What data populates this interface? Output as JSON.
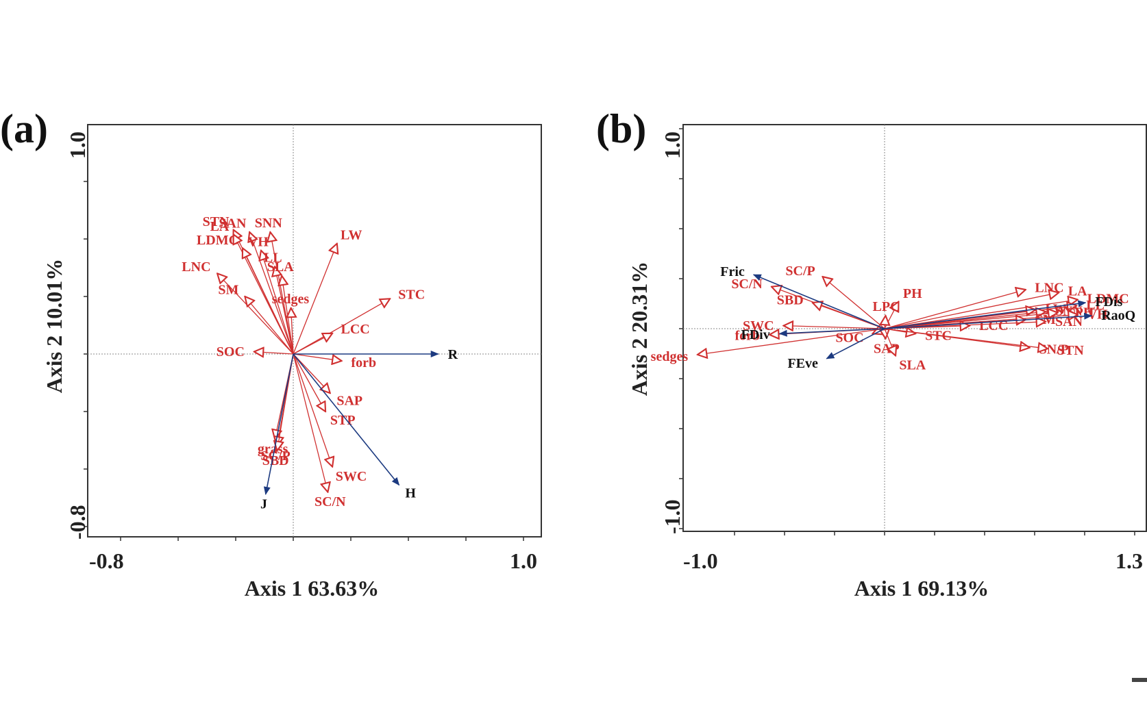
{
  "chart_data": [
    {
      "type": "scatter",
      "panel_label": "(a)",
      "xlabel": "Axis 1 63.63%",
      "ylabel": "Axis 2 10.01%",
      "xlim": [
        -0.8,
        1.0
      ],
      "ylim": [
        -0.8,
        1.0
      ],
      "x_tick_labels": [
        "-0.8",
        "1.0"
      ],
      "y_tick_labels": [
        "1.0",
        "-0.8"
      ],
      "series": [
        {
          "color": "#d03030",
          "head": "open",
          "vectors": [
            {
              "label": "STN",
              "x": -0.26,
              "y": 0.54
            },
            {
              "label": "LA",
              "x": -0.26,
              "y": 0.52
            },
            {
              "label": "SAN",
              "x": -0.19,
              "y": 0.53
            },
            {
              "label": "SNN",
              "x": -0.1,
              "y": 0.53
            },
            {
              "label": "LDMC",
              "x": -0.22,
              "y": 0.46
            },
            {
              "label": "VH",
              "x": -0.14,
              "y": 0.45
            },
            {
              "label": "LL",
              "x": -0.08,
              "y": 0.38
            },
            {
              "label": "SLA",
              "x": -0.05,
              "y": 0.34
            },
            {
              "label": "LNC",
              "x": -0.33,
              "y": 0.35
            },
            {
              "label": "SM",
              "x": -0.21,
              "y": 0.25
            },
            {
              "label": "sedges",
              "x": -0.01,
              "y": 0.2
            },
            {
              "label": "LW",
              "x": 0.19,
              "y": 0.48
            },
            {
              "label": "STC",
              "x": 0.42,
              "y": 0.24
            },
            {
              "label": "LCC",
              "x": 0.17,
              "y": 0.09
            },
            {
              "label": "SOC",
              "x": -0.17,
              "y": 0.01
            },
            {
              "label": "forb",
              "x": 0.21,
              "y": -0.03
            },
            {
              "label": "SAP",
              "x": 0.16,
              "y": -0.17
            },
            {
              "label": "STP",
              "x": 0.14,
              "y": -0.25
            },
            {
              "label": "grass",
              "x": -0.08,
              "y": -0.37
            },
            {
              "label": "SC/P",
              "x": -0.07,
              "y": -0.4
            },
            {
              "label": "SBD",
              "x": -0.07,
              "y": -0.42
            },
            {
              "label": "SWC",
              "x": 0.17,
              "y": -0.49
            },
            {
              "label": "SC/N",
              "x": 0.15,
              "y": -0.6
            }
          ]
        },
        {
          "color": "#1c3a80",
          "head": "filled",
          "vectors": [
            {
              "label": "R",
              "x": 0.63,
              "y": 0.0
            },
            {
              "label": "H",
              "x": 0.46,
              "y": -0.57
            },
            {
              "label": "J",
              "x": -0.12,
              "y": -0.61
            }
          ]
        }
      ]
    },
    {
      "type": "scatter",
      "panel_label": "(b)",
      "xlabel": "Axis 1 69.13%",
      "ylabel": "Axis 2 20.31%",
      "xlim": [
        -1.0,
        1.3
      ],
      "ylim": [
        -1.0,
        1.0
      ],
      "x_tick_labels": [
        "-1.0",
        "1.3"
      ],
      "y_tick_labels": [
        "1.0",
        "-1.0"
      ],
      "series": [
        {
          "color": "#d03030",
          "head": "open",
          "vectors": [
            {
              "label": "SC/P",
              "x": -0.62,
              "y": 0.52
            },
            {
              "label": "SC/N",
              "x": -1.13,
              "y": 0.42
            },
            {
              "label": "SBD",
              "x": -0.72,
              "y": 0.26
            },
            {
              "label": "PH",
              "x": 0.14,
              "y": 0.27
            },
            {
              "label": "LPC",
              "x": 0.01,
              "y": 0.13
            },
            {
              "label": "LNC",
              "x": 1.41,
              "y": 0.39
            },
            {
              "label": "LA",
              "x": 1.74,
              "y": 0.36
            },
            {
              "label": "LDMC",
              "x": 1.93,
              "y": 0.29
            },
            {
              "label": "LL",
              "x": 1.92,
              "y": 0.23
            },
            {
              "label": "LW",
              "x": 1.51,
              "y": 0.19
            },
            {
              "label": "SNN",
              "x": 1.61,
              "y": 0.17
            },
            {
              "label": "SPH",
              "x": 1.73,
              "y": 0.16
            },
            {
              "label": "VH",
              "x": 1.93,
              "y": 0.14
            },
            {
              "label": "SM",
              "x": 1.41,
              "y": 0.09
            },
            {
              "label": "SAN",
              "x": 1.61,
              "y": 0.07
            },
            {
              "label": "LCC",
              "x": 0.85,
              "y": 0.03
            },
            {
              "label": "SWC",
              "x": -1.01,
              "y": 0.03
            },
            {
              "label": "forb",
              "x": -1.15,
              "y": -0.06
            },
            {
              "label": "SOC",
              "x": -0.12,
              "y": -0.05
            },
            {
              "label": "STC",
              "x": 0.31,
              "y": -0.05
            },
            {
              "label": "SAP",
              "x": 0.01,
              "y": -0.1
            },
            {
              "label": "SLA",
              "x": 0.11,
              "y": -0.27
            },
            {
              "label": "SN/P",
              "x": 1.45,
              "y": -0.19
            },
            {
              "label": "STN",
              "x": 1.63,
              "y": -0.2
            },
            {
              "label": "sedges",
              "x": -1.87,
              "y": -0.26
            }
          ]
        },
        {
          "color": "#1c3a80",
          "head": "filled",
          "vectors": [
            {
              "label": "Fric",
              "x": -1.31,
              "y": 0.54
            },
            {
              "label": "FDis",
              "x": 2.01,
              "y": 0.26
            },
            {
              "label": "RaoQ",
              "x": 2.07,
              "y": 0.13
            },
            {
              "label": "FDiv",
              "x": -1.05,
              "y": -0.05
            },
            {
              "label": "FEve",
              "x": -0.58,
              "y": -0.3
            }
          ]
        }
      ]
    }
  ]
}
